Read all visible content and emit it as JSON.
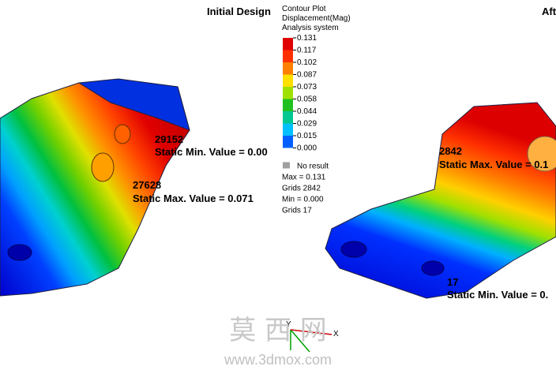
{
  "left": {
    "title": "Initial Design",
    "min_node": "29152",
    "min_label": "Static Min. Value = 0.00",
    "max_node": "27628",
    "max_label": "Static Max. Value = 0.071"
  },
  "right": {
    "title": "Aft",
    "max_node": "2842",
    "max_label": "Static Max. Value = 0.1",
    "min_node": "17",
    "min_label": "Static Min. Value = 0."
  },
  "legend": {
    "lines": [
      "Contour Plot",
      "Displacement(Mag)",
      "Analysis system"
    ],
    "levels": [
      "0.131",
      "0.117",
      "0.102",
      "0.087",
      "0.073",
      "0.058",
      "0.044",
      "0.029",
      "0.015",
      "0.000"
    ],
    "no_result": "No result",
    "stats": [
      "Max = 0.131",
      "Grids 2842",
      "Min = 0.000",
      "Grids 17"
    ]
  },
  "triad": {
    "y": "Y",
    "x": "X"
  },
  "watermark": {
    "name": "莫 西 网",
    "url": "www.3dmox.com"
  }
}
